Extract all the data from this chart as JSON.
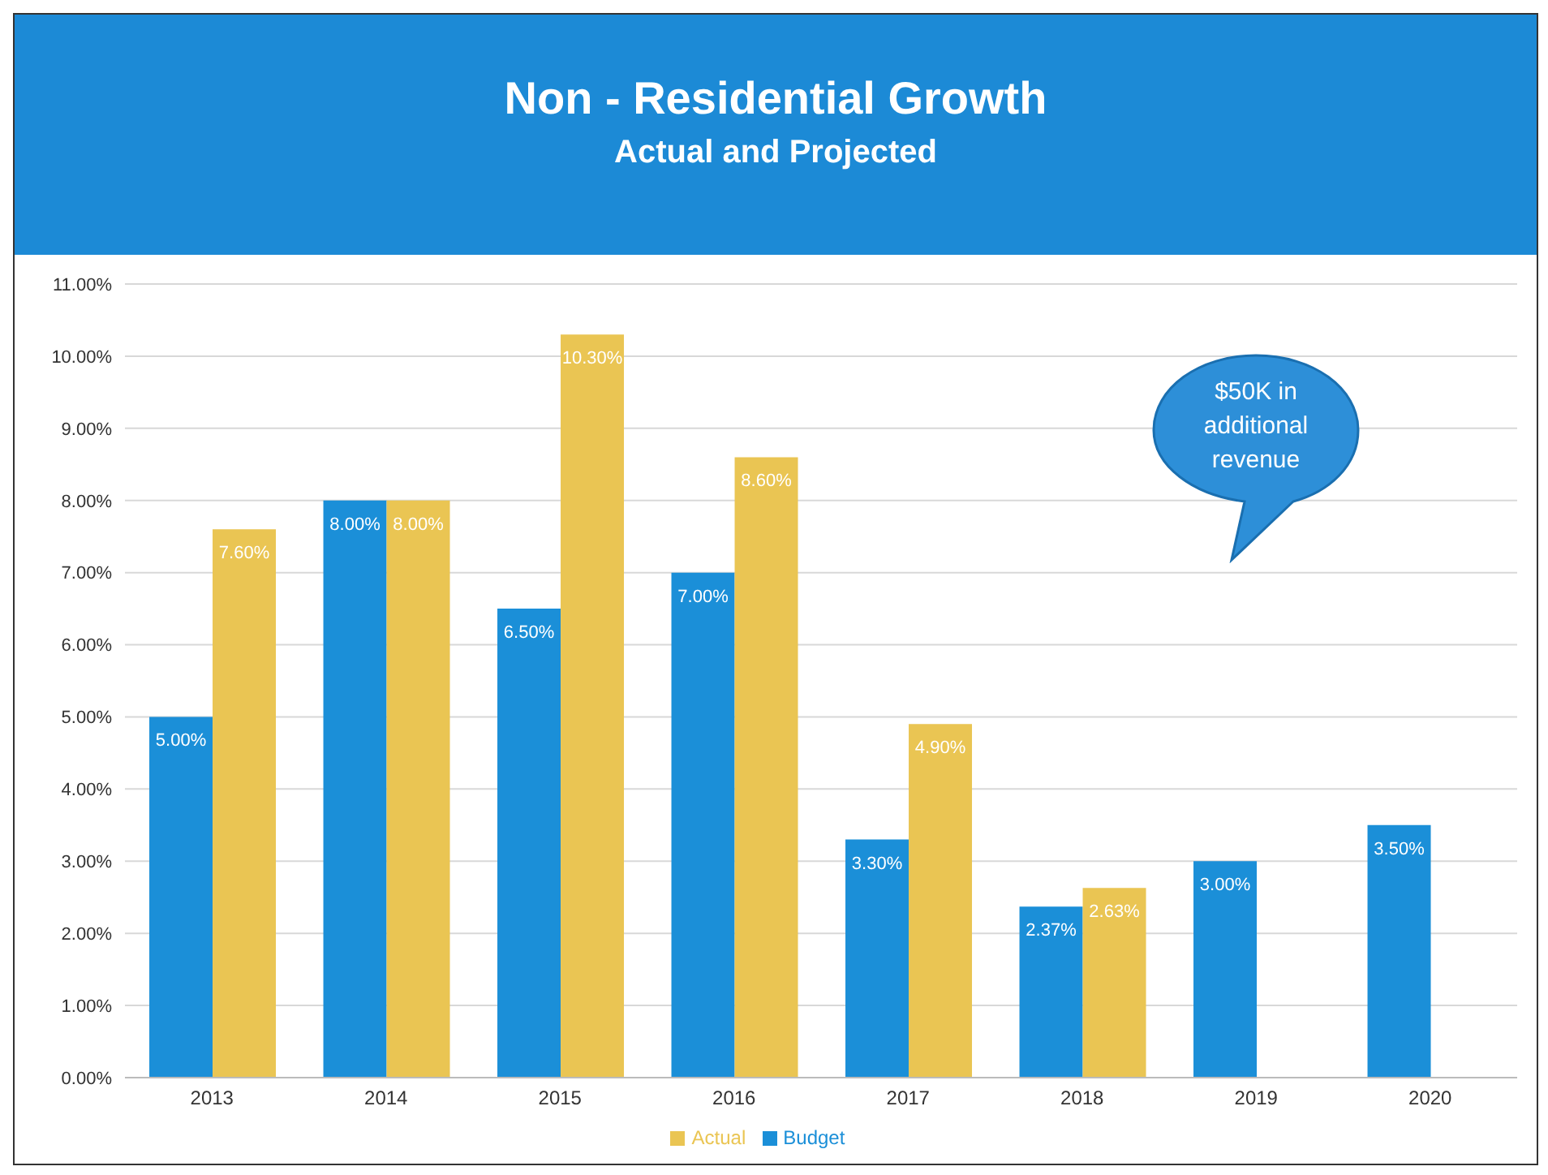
{
  "chart_data": {
    "type": "bar",
    "title": "Non - Residential Growth",
    "subtitle": "Actual and Projected",
    "categories": [
      "2013",
      "2014",
      "2015",
      "2016",
      "2017",
      "2018",
      "2019",
      "2020"
    ],
    "series": [
      {
        "name": "Budget",
        "color": "#1b8fd8",
        "values": [
          5.0,
          8.0,
          6.5,
          7.0,
          3.3,
          2.37,
          3.0,
          3.5
        ],
        "value_labels": [
          "5.00%",
          "8.00%",
          "6.50%",
          "7.00%",
          "3.30%",
          "2.37%",
          "3.00%",
          "3.50%"
        ]
      },
      {
        "name": "Actual",
        "color": "#eac553",
        "values": [
          7.6,
          8.0,
          10.3,
          8.6,
          4.9,
          2.63,
          null,
          null
        ],
        "value_labels": [
          "7.60%",
          "8.00%",
          "10.30%",
          "8.60%",
          "4.90%",
          "2.63%",
          null,
          null
        ]
      }
    ],
    "ylim": [
      0,
      11
    ],
    "yticks": [
      {
        "value": 0,
        "label": "0.00%"
      },
      {
        "value": 1,
        "label": "1.00%"
      },
      {
        "value": 2,
        "label": "2.00%"
      },
      {
        "value": 3,
        "label": "3.00%"
      },
      {
        "value": 4,
        "label": "4.00%"
      },
      {
        "value": 5,
        "label": "5.00%"
      },
      {
        "value": 6,
        "label": "6.00%"
      },
      {
        "value": 7,
        "label": "7.00%"
      },
      {
        "value": 8,
        "label": "8.00%"
      },
      {
        "value": 9,
        "label": "9.00%"
      },
      {
        "value": 10,
        "label": "10.00%"
      },
      {
        "value": 11,
        "label": "11.00%"
      }
    ],
    "grid": "y",
    "legend": "bottom",
    "annotations": [
      "$50K in additional revenue"
    ]
  }
}
